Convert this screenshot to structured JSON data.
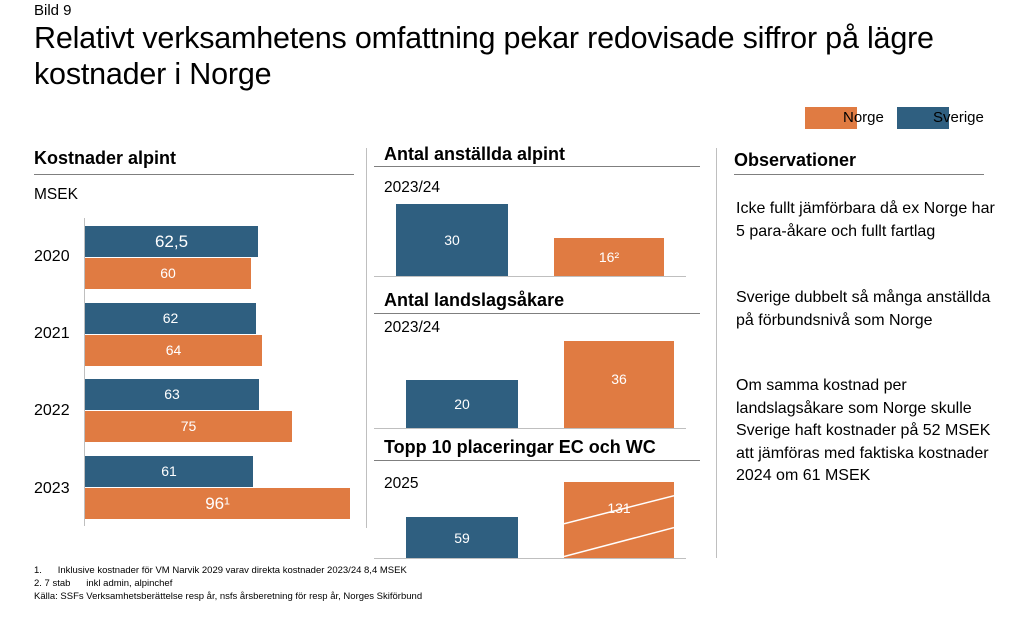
{
  "figure_label": "Bild 9",
  "title": "Relativt verksamhetens omfattning pekar redovisade siffror på lägre kostnader i Norge",
  "colors": {
    "norge": "#e07b42",
    "sverige": "#2f5f80",
    "axis": "#bfbfbf"
  },
  "legend": [
    {
      "name": "Norge",
      "color": "#e07b42"
    },
    {
      "name": "Sverige",
      "color": "#2f5f80"
    }
  ],
  "chart_data": [
    {
      "type": "bar",
      "orientation": "horizontal",
      "title": "Kostnader alpint",
      "unit": "MSEK",
      "categories": [
        "2020",
        "2021",
        "2022",
        "2023"
      ],
      "series": [
        {
          "name": "Sverige",
          "values": [
            62.5,
            62,
            63,
            61
          ],
          "labels": [
            "62,5",
            "62",
            "63",
            "61"
          ]
        },
        {
          "name": "Norge",
          "values": [
            60,
            64,
            75,
            96
          ],
          "labels": [
            "60",
            "64",
            "75",
            "96¹"
          ]
        }
      ]
    },
    {
      "type": "bar",
      "title": "Antal anställda alpint",
      "period": "2023/24",
      "categories": [
        "Sverige",
        "Norge"
      ],
      "values": [
        30,
        16
      ],
      "labels": [
        "30",
        "16²"
      ]
    },
    {
      "type": "bar",
      "title": "Antal landslagsåkare",
      "period": "2023/24",
      "categories": [
        "Sverige",
        "Norge"
      ],
      "values": [
        20,
        36
      ],
      "labels": [
        "20",
        "36"
      ]
    },
    {
      "type": "bar",
      "title": "Topp 10 placeringar EC och WC",
      "period": "2025",
      "categories": [
        "Sverige",
        "Norge"
      ],
      "values": [
        59,
        131
      ],
      "labels": [
        "59",
        "131"
      ],
      "axis_break": "Norge"
    }
  ],
  "observations": {
    "title": "Observationer",
    "items": [
      "Icke fullt jämförbara då ex Norge har 5 para-åkare och fullt fartlag",
      "Sverige dubbelt så många anställda på förbundsnivå som Norge",
      "Om samma kostnad per landslagsåkare som Norge skulle Sverige haft kostnader på 52 MSEK att jämföras med faktiska kostnader  2024 om 61 MSEK"
    ]
  },
  "footnotes": [
    "1.      Inklusive kostnader för VM Narvik 2029 varav direkta kostnader 2023/24 8,4 MSEK",
    "2. 7 stab      inkl admin, alpinchef",
    "Källa: SSFs Verksamhetsberättelse resp år, nsfs årsberetning för resp år, Norges Skiförbund"
  ]
}
